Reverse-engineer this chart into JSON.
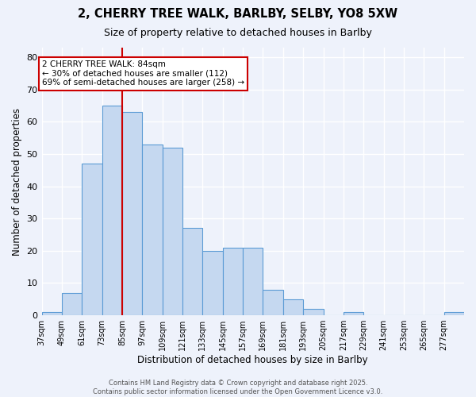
{
  "title_line1": "2, CHERRY TREE WALK, BARLBY, SELBY, YO8 5XW",
  "title_line2": "Size of property relative to detached houses in Barlby",
  "xlabel": "Distribution of detached houses by size in Barlby",
  "ylabel": "Number of detached properties",
  "bin_edges": [
    37,
    49,
    61,
    73,
    85,
    97,
    109,
    121,
    133,
    145,
    157,
    169,
    181,
    193,
    205,
    217,
    229,
    241,
    253,
    265,
    277,
    289
  ],
  "counts": [
    1,
    7,
    47,
    65,
    63,
    53,
    52,
    27,
    20,
    21,
    21,
    8,
    5,
    2,
    0,
    1,
    0,
    0,
    0,
    0,
    1
  ],
  "bar_color": "#c5d8f0",
  "bar_edge_color": "#5b9bd5",
  "vline_x": 85,
  "vline_color": "#cc0000",
  "annotation_text": "2 CHERRY TREE WALK: 84sqm\n← 30% of detached houses are smaller (112)\n69% of semi-detached houses are larger (258) →",
  "annotation_box_color": "#ffffff",
  "annotation_box_edge": "#cc0000",
  "ylim": [
    0,
    83
  ],
  "yticks": [
    0,
    10,
    20,
    30,
    40,
    50,
    60,
    70,
    80
  ],
  "bg_color": "#eef2fb",
  "grid_color": "#ffffff",
  "footer_text": "Contains HM Land Registry data © Crown copyright and database right 2025.\nContains public sector information licensed under the Open Government Licence v3.0."
}
